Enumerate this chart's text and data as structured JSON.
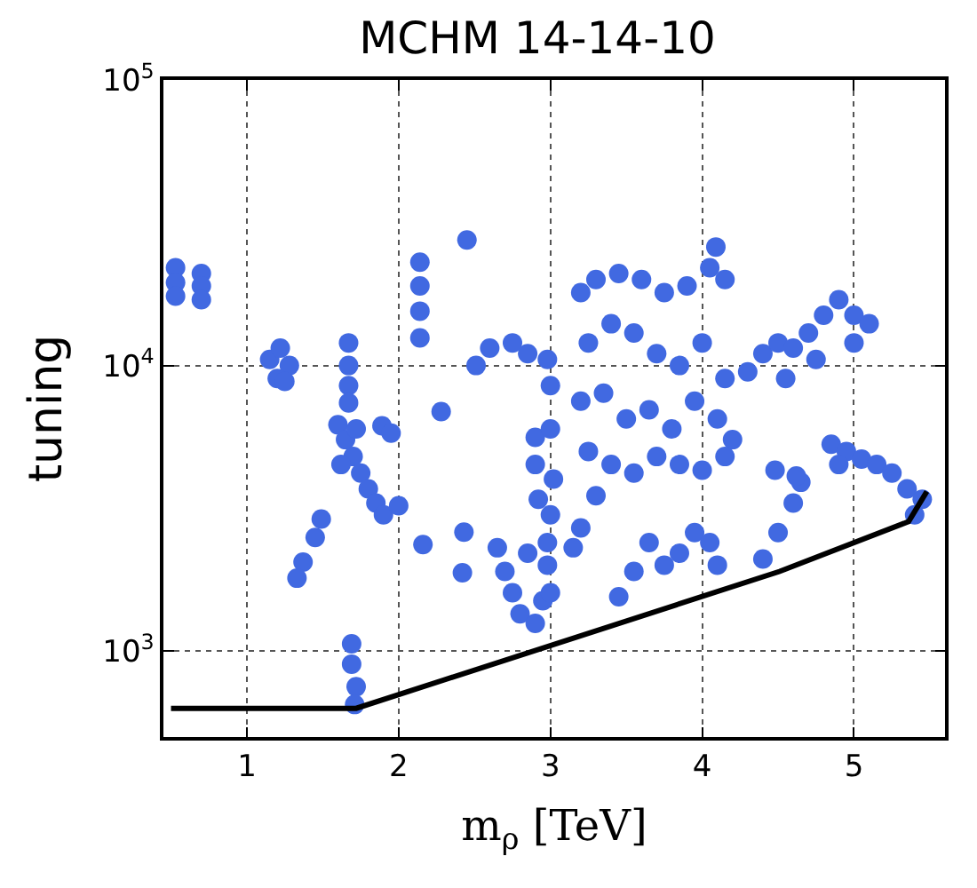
{
  "chart_data": {
    "type": "scatter",
    "title": "MCHM 14-14-10",
    "xlabel": "m$_{ρ}$ [TeV]",
    "ylabel": "tuning",
    "log": "y",
    "grid": true,
    "xlim": [
      0.45,
      5.6
    ],
    "xticks": [
      1,
      2,
      3,
      4,
      5
    ],
    "ylim": [
      500,
      100000
    ],
    "yticks": [
      {
        "value": 1000,
        "label": "10$^{3}$"
      },
      {
        "value": 10000,
        "label": "10$^{4}$"
      },
      {
        "value": 100000,
        "label": "10$^{5}$"
      }
    ],
    "series": [
      {
        "color": "#4169e1",
        "marker": "circle",
        "x": [
          0.53,
          0.53,
          0.53,
          0.7,
          0.7,
          0.7,
          1.15,
          1.22,
          1.28,
          1.2,
          1.25,
          1.67,
          1.67,
          1.67,
          1.67,
          1.6,
          1.65,
          1.7,
          1.75,
          1.8,
          1.85,
          1.62,
          1.9,
          1.72,
          1.89,
          1.95,
          2.0,
          1.49,
          1.45,
          1.37,
          1.33,
          1.69,
          1.69,
          1.72,
          1.71,
          2.14,
          2.14,
          2.14,
          2.14,
          2.45,
          2.28,
          2.16,
          2.43,
          2.42,
          2.51,
          2.6,
          2.75,
          2.85,
          2.98,
          2.9,
          2.9,
          2.92,
          2.65,
          2.7,
          2.75,
          2.8,
          2.9,
          2.95,
          2.98,
          2.85,
          3.0,
          3.0,
          3.02,
          3.0,
          2.98,
          3.0,
          3.2,
          3.3,
          3.45,
          3.6,
          3.75,
          3.9,
          4.05,
          4.09,
          4.15,
          3.25,
          3.4,
          3.55,
          3.7,
          3.85,
          4.0,
          4.15,
          3.2,
          3.35,
          3.5,
          3.65,
          3.8,
          3.95,
          4.1,
          4.2,
          3.25,
          3.4,
          3.55,
          3.7,
          3.85,
          4.0,
          4.15,
          3.3,
          3.2,
          3.15,
          4.3,
          4.4,
          4.5,
          4.6,
          4.7,
          4.8,
          4.9,
          5.0,
          5.1,
          4.55,
          4.75,
          5.0,
          4.85,
          4.95,
          5.05,
          5.15,
          5.25,
          5.35,
          5.45,
          5.4,
          4.9,
          3.45,
          3.55,
          3.65,
          3.75,
          3.85,
          3.95,
          4.05,
          4.1,
          4.4,
          4.5,
          4.6,
          4.65,
          4.48,
          4.62
        ],
        "values": [
          22000,
          19500,
          17500,
          21000,
          19000,
          17000,
          10500,
          11500,
          10000,
          9000,
          8800,
          12000,
          10000,
          8500,
          7400,
          6200,
          5500,
          4800,
          4200,
          3700,
          3300,
          4500,
          3000,
          6000,
          6150,
          5800,
          3230,
          2900,
          2500,
          2050,
          1800,
          1060,
          900,
          750,
          650,
          23000,
          19000,
          15500,
          12500,
          27500,
          6900,
          2360,
          2610,
          1880,
          10000,
          11500,
          12000,
          11000,
          10500,
          5600,
          4500,
          3400,
          2300,
          1900,
          1600,
          1350,
          1250,
          1500,
          2000,
          2200,
          8500,
          6000,
          4000,
          3000,
          2400,
          1600,
          18000,
          20000,
          21000,
          20000,
          18000,
          19000,
          22000,
          26000,
          20000,
          12000,
          14000,
          13000,
          11000,
          10000,
          12000,
          9000,
          7500,
          8000,
          6500,
          7000,
          6000,
          7500,
          6500,
          5500,
          5000,
          4500,
          4200,
          4800,
          4500,
          4300,
          4800,
          3500,
          2700,
          2300,
          9500,
          11000,
          12000,
          11500,
          13000,
          15000,
          17000,
          15000,
          14000,
          9000,
          10500,
          12000,
          5300,
          5000,
          4700,
          4500,
          4200,
          3700,
          3400,
          3000,
          4500,
          1550,
          1900,
          2400,
          2000,
          2200,
          2600,
          2400,
          2000,
          2100,
          2600,
          3300,
          3900,
          4300,
          4100
        ]
      },
      {
        "type": "line",
        "color": "#000000",
        "marker": "none",
        "line_style": "solid",
        "x": [
          0.5,
          1.72,
          4.51,
          5.36,
          5.48
        ],
        "values": [
          630,
          630,
          1900,
          2840,
          3620
        ]
      }
    ]
  }
}
